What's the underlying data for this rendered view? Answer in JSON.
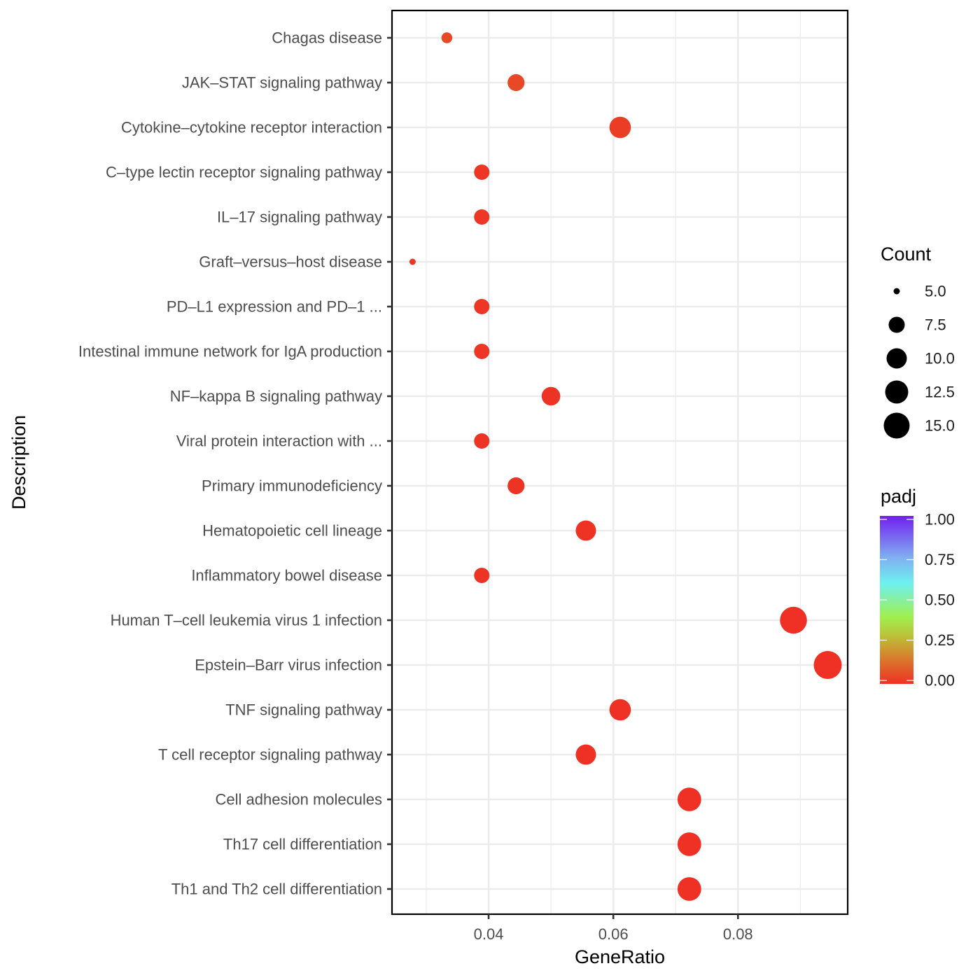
{
  "chart_data": {
    "type": "scatter",
    "subtype": "dotplot",
    "title": "",
    "xlabel": "GeneRatio",
    "ylabel": "Description",
    "xlim": [
      0.0245,
      0.0976
    ],
    "xticks": [
      0.04,
      0.06,
      0.08
    ],
    "xtick_labels": [
      "0.04",
      "0.06",
      "0.08"
    ],
    "x_minor_gridlines": [
      0.03,
      0.05,
      0.07,
      0.09
    ],
    "grid": true,
    "categories": [
      "Chagas disease",
      "JAK–STAT signaling pathway",
      "Cytokine–cytokine receptor interaction",
      "C–type lectin receptor signaling pathway",
      "IL–17 signaling pathway",
      "Graft–versus–host disease",
      "PD–L1 expression and PD–1 ...",
      "Intestinal immune network for IgA production",
      "NF–kappa B signaling pathway",
      "Viral protein interaction with ...",
      "Primary immunodeficiency",
      "Hematopoietic cell lineage",
      "Inflammatory bowel disease",
      "Human T–cell leukemia virus 1 infection",
      "Epstein–Barr virus infection",
      "TNF signaling pathway",
      "T cell receptor signaling pathway",
      "Cell adhesion molecules",
      "Th17 cell differentiation",
      "Th1 and Th2 cell differentiation"
    ],
    "points": [
      {
        "label": "Chagas disease",
        "gene_ratio": 0.0333,
        "count": 6,
        "padj": 0.05
      },
      {
        "label": "JAK–STAT signaling pathway",
        "gene_ratio": 0.0444,
        "count": 8,
        "padj": 0.05
      },
      {
        "label": "Cytokine–cytokine receptor interaction",
        "gene_ratio": 0.0611,
        "count": 11,
        "padj": 0.025
      },
      {
        "label": "C–type lectin receptor signaling pathway",
        "gene_ratio": 0.0389,
        "count": 7,
        "padj": 0.01
      },
      {
        "label": "IL–17 signaling pathway",
        "gene_ratio": 0.0389,
        "count": 7,
        "padj": 0.01
      },
      {
        "label": "Graft–versus–host disease",
        "gene_ratio": 0.0278,
        "count": 5,
        "padj": 0.01
      },
      {
        "label": "PD–L1 expression and PD–1 ...",
        "gene_ratio": 0.0389,
        "count": 7,
        "padj": 0.01
      },
      {
        "label": "Intestinal immune network for IgA production",
        "gene_ratio": 0.0389,
        "count": 7,
        "padj": 0.01
      },
      {
        "label": "NF–kappa B signaling pathway",
        "gene_ratio": 0.05,
        "count": 9,
        "padj": 0.005
      },
      {
        "label": "Viral protein interaction with ...",
        "gene_ratio": 0.0389,
        "count": 7,
        "padj": 0.005
      },
      {
        "label": "Primary immunodeficiency",
        "gene_ratio": 0.0444,
        "count": 8,
        "padj": 0.005
      },
      {
        "label": "Hematopoietic cell lineage",
        "gene_ratio": 0.0556,
        "count": 10,
        "padj": 0.002
      },
      {
        "label": "Inflammatory bowel disease",
        "gene_ratio": 0.0389,
        "count": 7,
        "padj": 0.002
      },
      {
        "label": "Human T–cell leukemia virus 1 infection",
        "gene_ratio": 0.0889,
        "count": 16,
        "padj": 0.001
      },
      {
        "label": "Epstein–Barr virus infection",
        "gene_ratio": 0.0944,
        "count": 17,
        "padj": 0.001
      },
      {
        "label": "TNF signaling pathway",
        "gene_ratio": 0.0611,
        "count": 11,
        "padj": 0.001
      },
      {
        "label": "T cell receptor signaling pathway",
        "gene_ratio": 0.0556,
        "count": 10,
        "padj": 0.001
      },
      {
        "label": "Cell adhesion molecules",
        "gene_ratio": 0.0722,
        "count": 13,
        "padj": 0.0005
      },
      {
        "label": "Th17 cell differentiation",
        "gene_ratio": 0.0722,
        "count": 13,
        "padj": 0.0005
      },
      {
        "label": "Th1 and Th2 cell differentiation",
        "gene_ratio": 0.0722,
        "count": 13,
        "padj": 0.0005
      }
    ],
    "legend": {
      "placement": "right",
      "size": {
        "title": "Count",
        "breaks": [
          5.0,
          7.5,
          10.0,
          12.5,
          15.0
        ],
        "labels": [
          "5.0",
          "7.5",
          "10.0",
          "12.5",
          "15.0"
        ]
      },
      "color": {
        "title": "padj",
        "range": [
          0,
          1
        ],
        "breaks": [
          1.0,
          0.75,
          0.5,
          0.25,
          0.0
        ],
        "labels": [
          "1.00",
          "0.75",
          "0.50",
          "0.25",
          "0.00"
        ],
        "gradient_stops": [
          {
            "value": 0.0,
            "color": "#ee3124"
          },
          {
            "value": 0.15,
            "color": "#d97a2c"
          },
          {
            "value": 0.3,
            "color": "#b8c83a"
          },
          {
            "value": 0.4,
            "color": "#9ef050"
          },
          {
            "value": 0.6,
            "color": "#6ef0f0"
          },
          {
            "value": 0.75,
            "color": "#80b0f0"
          },
          {
            "value": 1.0,
            "color": "#7020f0"
          }
        ]
      }
    }
  }
}
